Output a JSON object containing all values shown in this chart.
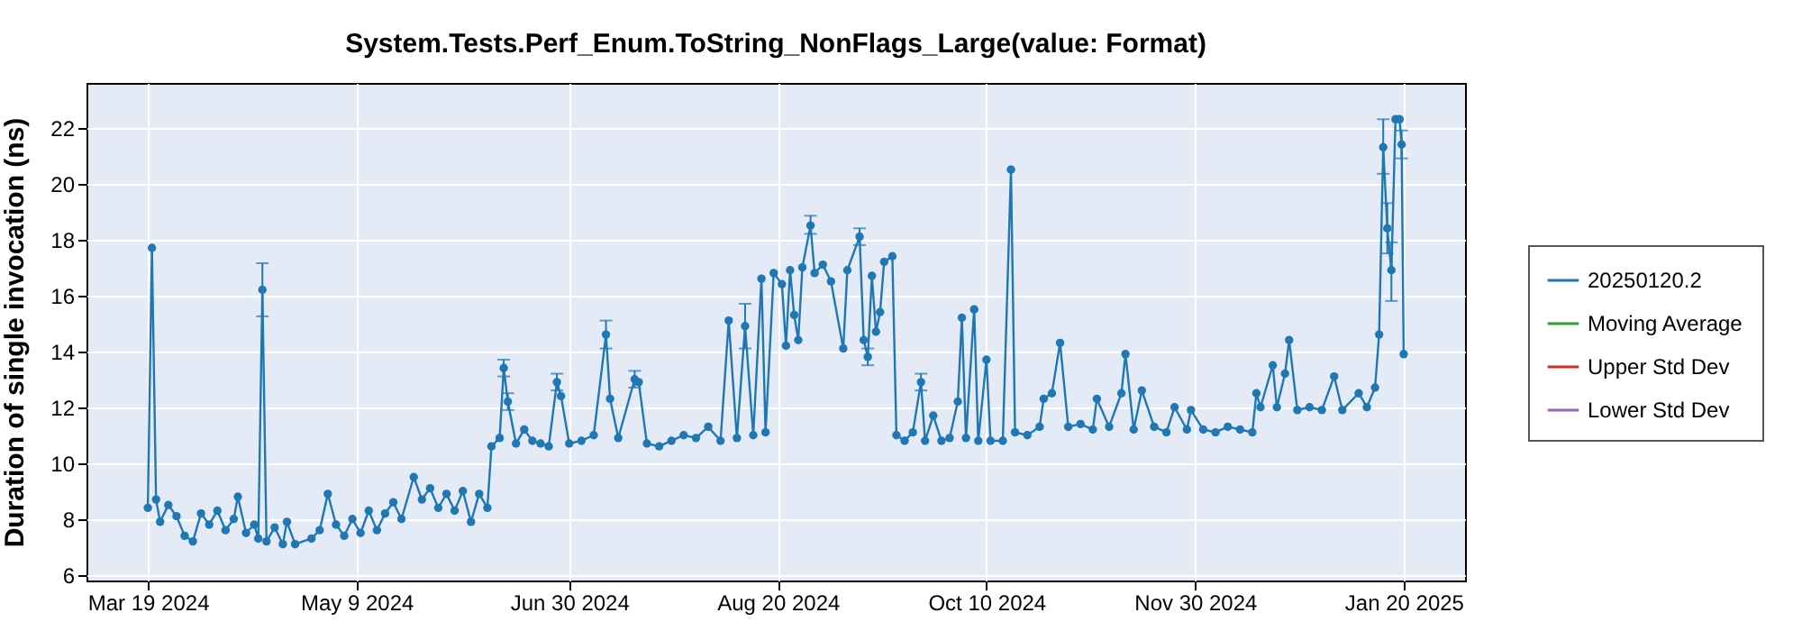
{
  "chart_data": {
    "type": "line",
    "title": "System.Tests.Perf_Enum.ToString_NonFlags_Large(value: Format)",
    "ylabel": "Duration of single invocation (ns)",
    "xlim": [
      "2024-03-04",
      "2025-02-04"
    ],
    "xticks": [
      {
        "value": "2024-03-19",
        "label": "Mar 19 2024"
      },
      {
        "value": "2024-05-09",
        "label": "May 9 2024"
      },
      {
        "value": "2024-06-30",
        "label": "Jun 30 2024"
      },
      {
        "value": "2024-08-20",
        "label": "Aug 20 2024"
      },
      {
        "value": "2024-10-10",
        "label": "Oct 10 2024"
      },
      {
        "value": "2024-11-30",
        "label": "Nov 30 2024"
      },
      {
        "value": "2025-01-20",
        "label": "Jan 20 2025"
      }
    ],
    "ylim": [
      5.8,
      23.6
    ],
    "yticks": [
      6,
      8,
      10,
      12,
      14,
      16,
      18,
      20,
      22
    ],
    "grid": true,
    "legend": "right",
    "marker": "circle",
    "line_style": "solid",
    "series": [
      {
        "name": "20250120.2",
        "color": "#1f77b4",
        "x": [
          "2024-03-19",
          "2024-03-20",
          "2024-03-21",
          "2024-03-22",
          "2024-03-24",
          "2024-03-26",
          "2024-03-28",
          "2024-03-30",
          "2024-04-01",
          "2024-04-03",
          "2024-04-05",
          "2024-04-07",
          "2024-04-09",
          "2024-04-10",
          "2024-04-12",
          "2024-04-14",
          "2024-04-15",
          "2024-04-16",
          "2024-04-17",
          "2024-04-19",
          "2024-04-21",
          "2024-04-22",
          "2024-04-24",
          "2024-04-28",
          "2024-04-30",
          "2024-05-02",
          "2024-05-04",
          "2024-05-06",
          "2024-05-08",
          "2024-05-10",
          "2024-05-12",
          "2024-05-14",
          "2024-05-16",
          "2024-05-18",
          "2024-05-20",
          "2024-05-23",
          "2024-05-25",
          "2024-05-27",
          "2024-05-29",
          "2024-05-31",
          "2024-06-02",
          "2024-06-04",
          "2024-06-06",
          "2024-06-08",
          "2024-06-10",
          "2024-06-11",
          "2024-06-13",
          "2024-06-14",
          "2024-06-15",
          "2024-06-17",
          "2024-06-19",
          "2024-06-21",
          "2024-06-23",
          "2024-06-25",
          "2024-06-27",
          "2024-06-28",
          "2024-06-30",
          "2024-07-03",
          "2024-07-06",
          "2024-07-09",
          "2024-07-10",
          "2024-07-12",
          "2024-07-16",
          "2024-07-17",
          "2024-07-19",
          "2024-07-22",
          "2024-07-25",
          "2024-07-28",
          "2024-07-31",
          "2024-08-03",
          "2024-08-06",
          "2024-08-08",
          "2024-08-10",
          "2024-08-12",
          "2024-08-14",
          "2024-08-16",
          "2024-08-17",
          "2024-08-19",
          "2024-08-21",
          "2024-08-22",
          "2024-08-23",
          "2024-08-24",
          "2024-08-25",
          "2024-08-26",
          "2024-08-28",
          "2024-08-29",
          "2024-08-31",
          "2024-09-02",
          "2024-09-05",
          "2024-09-06",
          "2024-09-09",
          "2024-09-10",
          "2024-09-11",
          "2024-09-12",
          "2024-09-13",
          "2024-09-14",
          "2024-09-15",
          "2024-09-17",
          "2024-09-18",
          "2024-09-20",
          "2024-09-22",
          "2024-09-24",
          "2024-09-25",
          "2024-09-27",
          "2024-09-29",
          "2024-10-01",
          "2024-10-03",
          "2024-10-04",
          "2024-10-05",
          "2024-10-07",
          "2024-10-08",
          "2024-10-10",
          "2024-10-11",
          "2024-10-14",
          "2024-10-16",
          "2024-10-17",
          "2024-10-20",
          "2024-10-23",
          "2024-10-24",
          "2024-10-26",
          "2024-10-28",
          "2024-10-30",
          "2024-11-02",
          "2024-11-05",
          "2024-11-06",
          "2024-11-09",
          "2024-11-12",
          "2024-11-13",
          "2024-11-15",
          "2024-11-17",
          "2024-11-20",
          "2024-11-23",
          "2024-11-25",
          "2024-11-28",
          "2024-11-29",
          "2024-12-02",
          "2024-12-05",
          "2024-12-08",
          "2024-12-11",
          "2024-12-14",
          "2024-12-15",
          "2024-12-16",
          "2024-12-19",
          "2024-12-20",
          "2024-12-22",
          "2024-12-23",
          "2024-12-25",
          "2024-12-28",
          "2024-12-31",
          "2025-01-03",
          "2025-01-05",
          "2025-01-09",
          "2025-01-11",
          "2025-01-13",
          "2025-01-14",
          "2025-01-15",
          "2025-01-16",
          "2025-01-17",
          "2025-01-18",
          "2025-01-19",
          "2025-01-19T12:00",
          "2025-01-20"
        ],
        "values": [
          8.4,
          17.7,
          8.7,
          7.9,
          8.5,
          8.1,
          7.4,
          7.2,
          8.2,
          7.8,
          8.3,
          7.6,
          8.0,
          8.8,
          7.5,
          7.8,
          7.3,
          16.2,
          7.2,
          7.7,
          7.1,
          7.9,
          7.1,
          7.3,
          7.6,
          8.9,
          7.8,
          7.4,
          8.0,
          7.5,
          8.3,
          7.6,
          8.2,
          8.6,
          8.0,
          9.5,
          8.7,
          9.1,
          8.4,
          8.9,
          8.3,
          9.0,
          7.9,
          8.9,
          8.4,
          10.6,
          10.9,
          13.4,
          12.2,
          10.7,
          11.2,
          10.8,
          10.7,
          10.6,
          12.9,
          12.4,
          10.7,
          10.8,
          11.0,
          14.6,
          12.3,
          10.9,
          13.0,
          12.9,
          10.7,
          10.6,
          10.8,
          11.0,
          10.9,
          11.3,
          10.8,
          15.1,
          10.9,
          14.9,
          11.0,
          16.6,
          11.1,
          16.8,
          16.4,
          14.2,
          16.9,
          15.3,
          14.4,
          17.0,
          18.5,
          16.8,
          17.1,
          16.5,
          14.1,
          16.9,
          18.1,
          14.4,
          13.8,
          16.7,
          14.7,
          15.4,
          17.2,
          17.4,
          11.0,
          10.8,
          11.1,
          12.9,
          10.8,
          11.7,
          10.8,
          10.9,
          12.2,
          15.2,
          10.9,
          15.5,
          10.8,
          13.7,
          10.8,
          10.8,
          20.5,
          11.1,
          11.0,
          11.3,
          12.3,
          12.5,
          14.3,
          11.3,
          11.4,
          11.2,
          12.3,
          11.3,
          12.5,
          13.9,
          11.2,
          12.6,
          11.3,
          11.1,
          12.0,
          11.2,
          11.9,
          11.2,
          11.1,
          11.3,
          11.2,
          11.1,
          12.5,
          12.0,
          13.5,
          12.0,
          13.2,
          14.4,
          11.9,
          12.0,
          11.9,
          13.1,
          11.9,
          12.5,
          12.0,
          12.7,
          14.6,
          21.3,
          18.4,
          16.9,
          22.3,
          22.3,
          21.4,
          13.9
        ],
        "errors": [
          null,
          null,
          null,
          null,
          null,
          null,
          null,
          null,
          null,
          null,
          null,
          null,
          null,
          null,
          null,
          null,
          null,
          [
            15.25,
            17.15
          ],
          null,
          null,
          null,
          null,
          null,
          null,
          null,
          null,
          null,
          null,
          null,
          null,
          null,
          null,
          null,
          null,
          null,
          null,
          null,
          null,
          null,
          null,
          null,
          null,
          null,
          null,
          null,
          null,
          null,
          [
            13.1,
            13.7
          ],
          [
            11.9,
            12.5
          ],
          null,
          null,
          null,
          null,
          null,
          [
            12.6,
            13.2
          ],
          null,
          null,
          null,
          null,
          [
            14.1,
            15.1
          ],
          null,
          null,
          [
            12.7,
            13.3
          ],
          null,
          null,
          null,
          null,
          null,
          null,
          null,
          null,
          null,
          null,
          [
            14.1,
            15.7
          ],
          null,
          null,
          null,
          null,
          null,
          null,
          null,
          null,
          null,
          null,
          [
            18.2,
            18.85
          ],
          null,
          null,
          null,
          null,
          null,
          [
            17.8,
            18.4
          ],
          null,
          [
            13.5,
            14.1
          ],
          null,
          null,
          null,
          null,
          null,
          null,
          null,
          null,
          [
            12.6,
            13.2
          ],
          null,
          null,
          null,
          null,
          null,
          null,
          null,
          null,
          null,
          null,
          null,
          null,
          null,
          null,
          null,
          null,
          null,
          null,
          null,
          null,
          null,
          null,
          null,
          null,
          null,
          null,
          null,
          null,
          null,
          null,
          null,
          null,
          null,
          null,
          null,
          null,
          null,
          null,
          null,
          null,
          null,
          null,
          null,
          null,
          null,
          null,
          null,
          null,
          null,
          null,
          null,
          null,
          null,
          [
            20.35,
            22.3
          ],
          [
            17.5,
            19.3
          ],
          [
            15.8,
            17.9
          ],
          null,
          null,
          [
            20.9,
            21.9
          ],
          null
        ]
      },
      {
        "name": "Moving Average",
        "color": "#2ca02c"
      },
      {
        "name": "Upper Std Dev",
        "color": "#d62728"
      },
      {
        "name": "Lower Std Dev",
        "color": "#9467bd"
      }
    ]
  }
}
